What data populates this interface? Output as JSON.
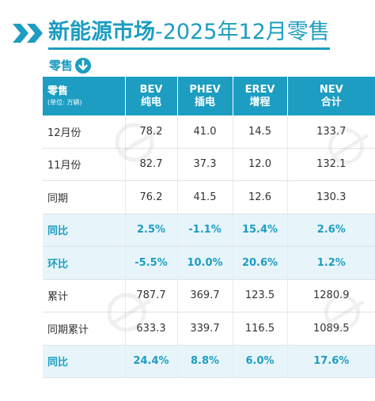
{
  "title": {
    "prefix": "新能源市场",
    "suffix": "-2025年12月零售"
  },
  "subheading": "零售",
  "table": {
    "corner_label": "零售",
    "corner_unit": "(单位: 万辆)",
    "columns": [
      {
        "en": "BEV",
        "zh": "纯电"
      },
      {
        "en": "PHEV",
        "zh": "插电"
      },
      {
        "en": "EREV",
        "zh": "增程"
      },
      {
        "en": "NEV",
        "zh": "合计"
      }
    ],
    "rows": [
      {
        "label": "12月份",
        "values": [
          "78.2",
          "41.0",
          "14.5",
          "133.7"
        ],
        "highlight": false
      },
      {
        "label": "11月份",
        "values": [
          "82.7",
          "37.3",
          "12.0",
          "132.1"
        ],
        "highlight": false
      },
      {
        "label": "同期",
        "values": [
          "76.2",
          "41.5",
          "12.6",
          "130.3"
        ],
        "highlight": false
      },
      {
        "label": "同比",
        "values": [
          "2.5%",
          "-1.1%",
          "15.4%",
          "2.6%"
        ],
        "highlight": true
      },
      {
        "label": "环比",
        "values": [
          "-5.5%",
          "10.0%",
          "20.6%",
          "1.2%"
        ],
        "highlight": true
      },
      {
        "label": "累计",
        "values": [
          "787.7",
          "369.7",
          "123.5",
          "1280.9"
        ],
        "highlight": false
      },
      {
        "label": "同期累计",
        "values": [
          "633.3",
          "339.7",
          "116.5",
          "1089.5"
        ],
        "highlight": false
      },
      {
        "label": "同比",
        "values": [
          "24.4%",
          "8.8%",
          "6.0%",
          "17.6%"
        ],
        "highlight": true
      }
    ]
  },
  "colors": {
    "accent": "#1c9dc1",
    "highlight_row": "#e7f5fa"
  },
  "icons": [
    "double-chevron-icon",
    "arrow-down-circle-icon"
  ]
}
